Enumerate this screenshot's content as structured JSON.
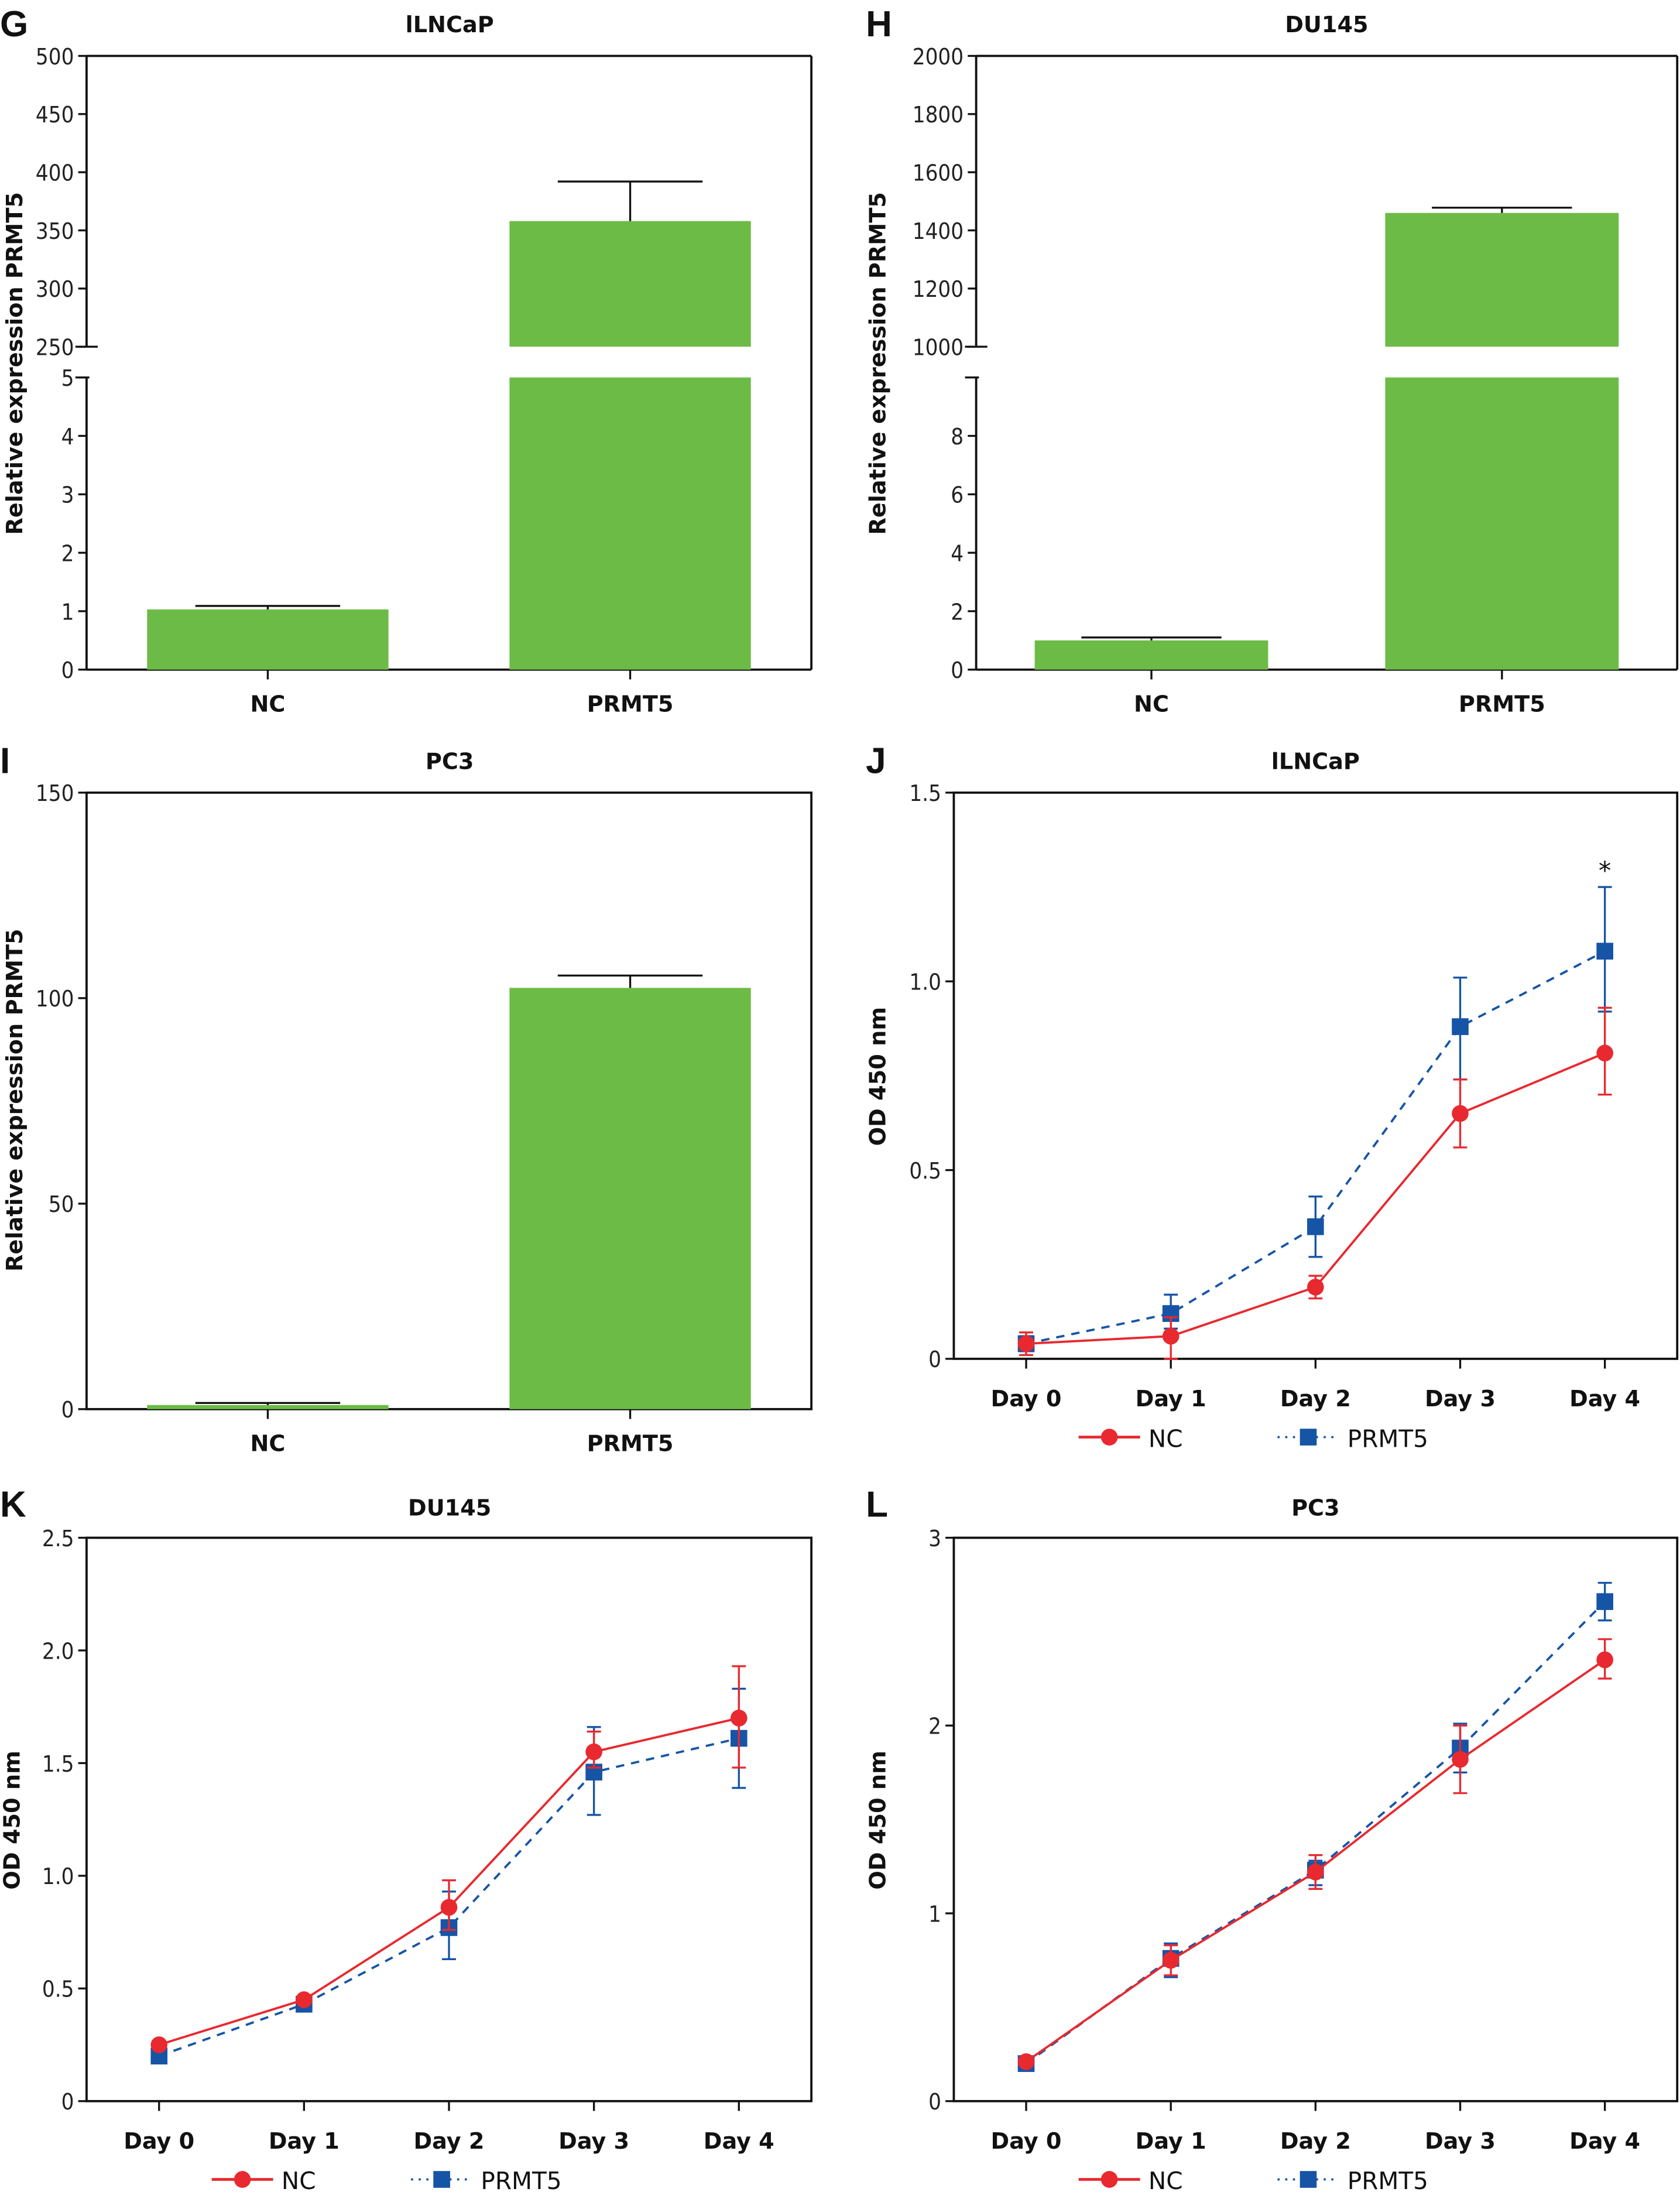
{
  "figure": {
    "colors": {
      "bar": "#6cbb46",
      "nc": "#e8292f",
      "prmt5": "#1654a6",
      "axis": "#111111"
    }
  },
  "chart_data": [
    {
      "panel": "G",
      "type": "bar",
      "title": "lLNCaP",
      "ylabel": "Relative expression PRMT5",
      "xlabel": "",
      "categories": [
        "NC",
        "PRMT5"
      ],
      "values": [
        1.03,
        358
      ],
      "error_upper": [
        1.09,
        392
      ],
      "axis_break": true,
      "lower_segment": {
        "ylim": [
          0,
          5
        ],
        "ticks": [
          "0",
          "1",
          "2",
          "3",
          "4",
          "5"
        ],
        "tick_values": [
          0,
          1,
          2,
          3,
          4,
          5
        ]
      },
      "upper_segment": {
        "ylim": [
          250,
          500
        ],
        "ticks": [
          "250",
          "300",
          "350",
          "400",
          "450",
          "500"
        ],
        "tick_values": [
          250,
          300,
          350,
          400,
          450,
          500
        ]
      },
      "grid": false
    },
    {
      "panel": "H",
      "type": "bar",
      "title": "DU145",
      "ylabel": "Relative expression PRMT5",
      "xlabel": "",
      "categories": [
        "NC",
        "PRMT5"
      ],
      "values": [
        1.0,
        1460
      ],
      "error_upper": [
        1.1,
        1478
      ],
      "axis_break": true,
      "lower_segment": {
        "ylim": [
          0,
          10
        ],
        "ticks": [
          "0",
          "2",
          "4",
          "6",
          "8"
        ],
        "tick_values": [
          0,
          2,
          4,
          6,
          8
        ]
      },
      "upper_segment": {
        "ylim": [
          1000,
          2000
        ],
        "ticks": [
          "1000",
          "1200",
          "1400",
          "1600",
          "1800",
          "2000"
        ],
        "tick_values": [
          1000,
          1200,
          1400,
          1600,
          1800,
          2000
        ]
      },
      "grid": false
    },
    {
      "panel": "I",
      "type": "bar",
      "title": "PC3",
      "ylabel": "Relative expression PRMT5",
      "xlabel": "",
      "categories": [
        "NC",
        "PRMT5"
      ],
      "values": [
        1.0,
        102.5
      ],
      "error_upper": [
        1.5,
        105.5
      ],
      "axis_break": false,
      "ylim": [
        0,
        150
      ],
      "ticks": [
        "0",
        "50",
        "100",
        "150"
      ],
      "tick_values": [
        0,
        50,
        100,
        150
      ],
      "grid": false
    },
    {
      "panel": "J",
      "type": "line",
      "title": "lLNCaP",
      "ylabel": "OD 450 nm",
      "xlabel": "",
      "categories": [
        "Day 0",
        "Day 1",
        "Day 2",
        "Day 3",
        "Day 4"
      ],
      "ylim": [
        0,
        1.5
      ],
      "ticks": [
        "0",
        "0.5",
        "1.0",
        "1.5"
      ],
      "tick_values": [
        0,
        0.5,
        1.0,
        1.5
      ],
      "series": [
        {
          "name": "NC",
          "key": "nc",
          "marker": "circle",
          "line": "solid",
          "values": [
            0.04,
            0.06,
            0.19,
            0.65,
            0.81
          ],
          "err_low": [
            0.01,
            0.0,
            0.16,
            0.56,
            0.7
          ],
          "err_high": [
            0.07,
            0.11,
            0.22,
            0.74,
            0.93
          ]
        },
        {
          "name": "PRMT5",
          "key": "prmt5",
          "marker": "square",
          "line": "dashed",
          "values": [
            0.04,
            0.12,
            0.35,
            0.88,
            1.08
          ],
          "err_low": [
            0.02,
            0.08,
            0.27,
            0.74,
            0.92
          ],
          "err_high": [
            0.06,
            0.17,
            0.43,
            1.01,
            1.25
          ]
        }
      ],
      "annotations": [
        {
          "text": "*",
          "category": "Day 4",
          "y": 1.3
        }
      ],
      "legend": {
        "position": "bottom",
        "entries": [
          "NC",
          "PRMT5"
        ]
      },
      "grid": false
    },
    {
      "panel": "K",
      "type": "line",
      "title": "DU145",
      "ylabel": "OD 450 nm",
      "xlabel": "",
      "categories": [
        "Day 0",
        "Day 1",
        "Day 2",
        "Day 3",
        "Day 4"
      ],
      "ylim": [
        0,
        2.5
      ],
      "ticks": [
        "0",
        "0.5",
        "1.0",
        "1.5",
        "2.0",
        "2.5"
      ],
      "tick_values": [
        0,
        0.5,
        1.0,
        1.5,
        2.0,
        2.5
      ],
      "series": [
        {
          "name": "NC",
          "key": "nc",
          "marker": "circle",
          "line": "solid",
          "values": [
            0.25,
            0.45,
            0.86,
            1.55,
            1.7
          ],
          "err_low": [
            0.24,
            0.44,
            0.76,
            1.48,
            1.48
          ],
          "err_high": [
            0.26,
            0.46,
            0.98,
            1.64,
            1.93
          ]
        },
        {
          "name": "PRMT5",
          "key": "prmt5",
          "marker": "square",
          "line": "dashed",
          "values": [
            0.2,
            0.43,
            0.77,
            1.46,
            1.61
          ],
          "err_low": [
            0.19,
            0.41,
            0.63,
            1.27,
            1.39
          ],
          "err_high": [
            0.21,
            0.45,
            0.93,
            1.66,
            1.83
          ]
        }
      ],
      "legend": {
        "position": "bottom",
        "entries": [
          "NC",
          "PRMT5"
        ]
      },
      "grid": false
    },
    {
      "panel": "L",
      "type": "line",
      "title": "PC3",
      "ylabel": "OD 450 nm",
      "xlabel": "",
      "categories": [
        "Day 0",
        "Day 1",
        "Day 2",
        "Day 3",
        "Day 4"
      ],
      "ylim": [
        0,
        3
      ],
      "ticks": [
        "0",
        "1",
        "2",
        "3"
      ],
      "tick_values": [
        0,
        1,
        2,
        3
      ],
      "series": [
        {
          "name": "NC",
          "key": "nc",
          "marker": "circle",
          "line": "solid",
          "values": [
            0.21,
            0.75,
            1.22,
            1.82,
            2.35
          ],
          "err_low": [
            0.2,
            0.67,
            1.13,
            1.64,
            2.25
          ],
          "err_high": [
            0.22,
            0.83,
            1.31,
            2.0,
            2.46
          ]
        },
        {
          "name": "PRMT5",
          "key": "prmt5",
          "marker": "square",
          "line": "dashed",
          "values": [
            0.2,
            0.76,
            1.23,
            1.88,
            2.66
          ],
          "err_low": [
            0.19,
            0.66,
            1.15,
            1.75,
            2.56
          ],
          "err_high": [
            0.21,
            0.84,
            1.28,
            2.01,
            2.76
          ]
        }
      ],
      "legend": {
        "position": "bottom",
        "entries": [
          "NC",
          "PRMT5"
        ]
      },
      "grid": false
    }
  ]
}
